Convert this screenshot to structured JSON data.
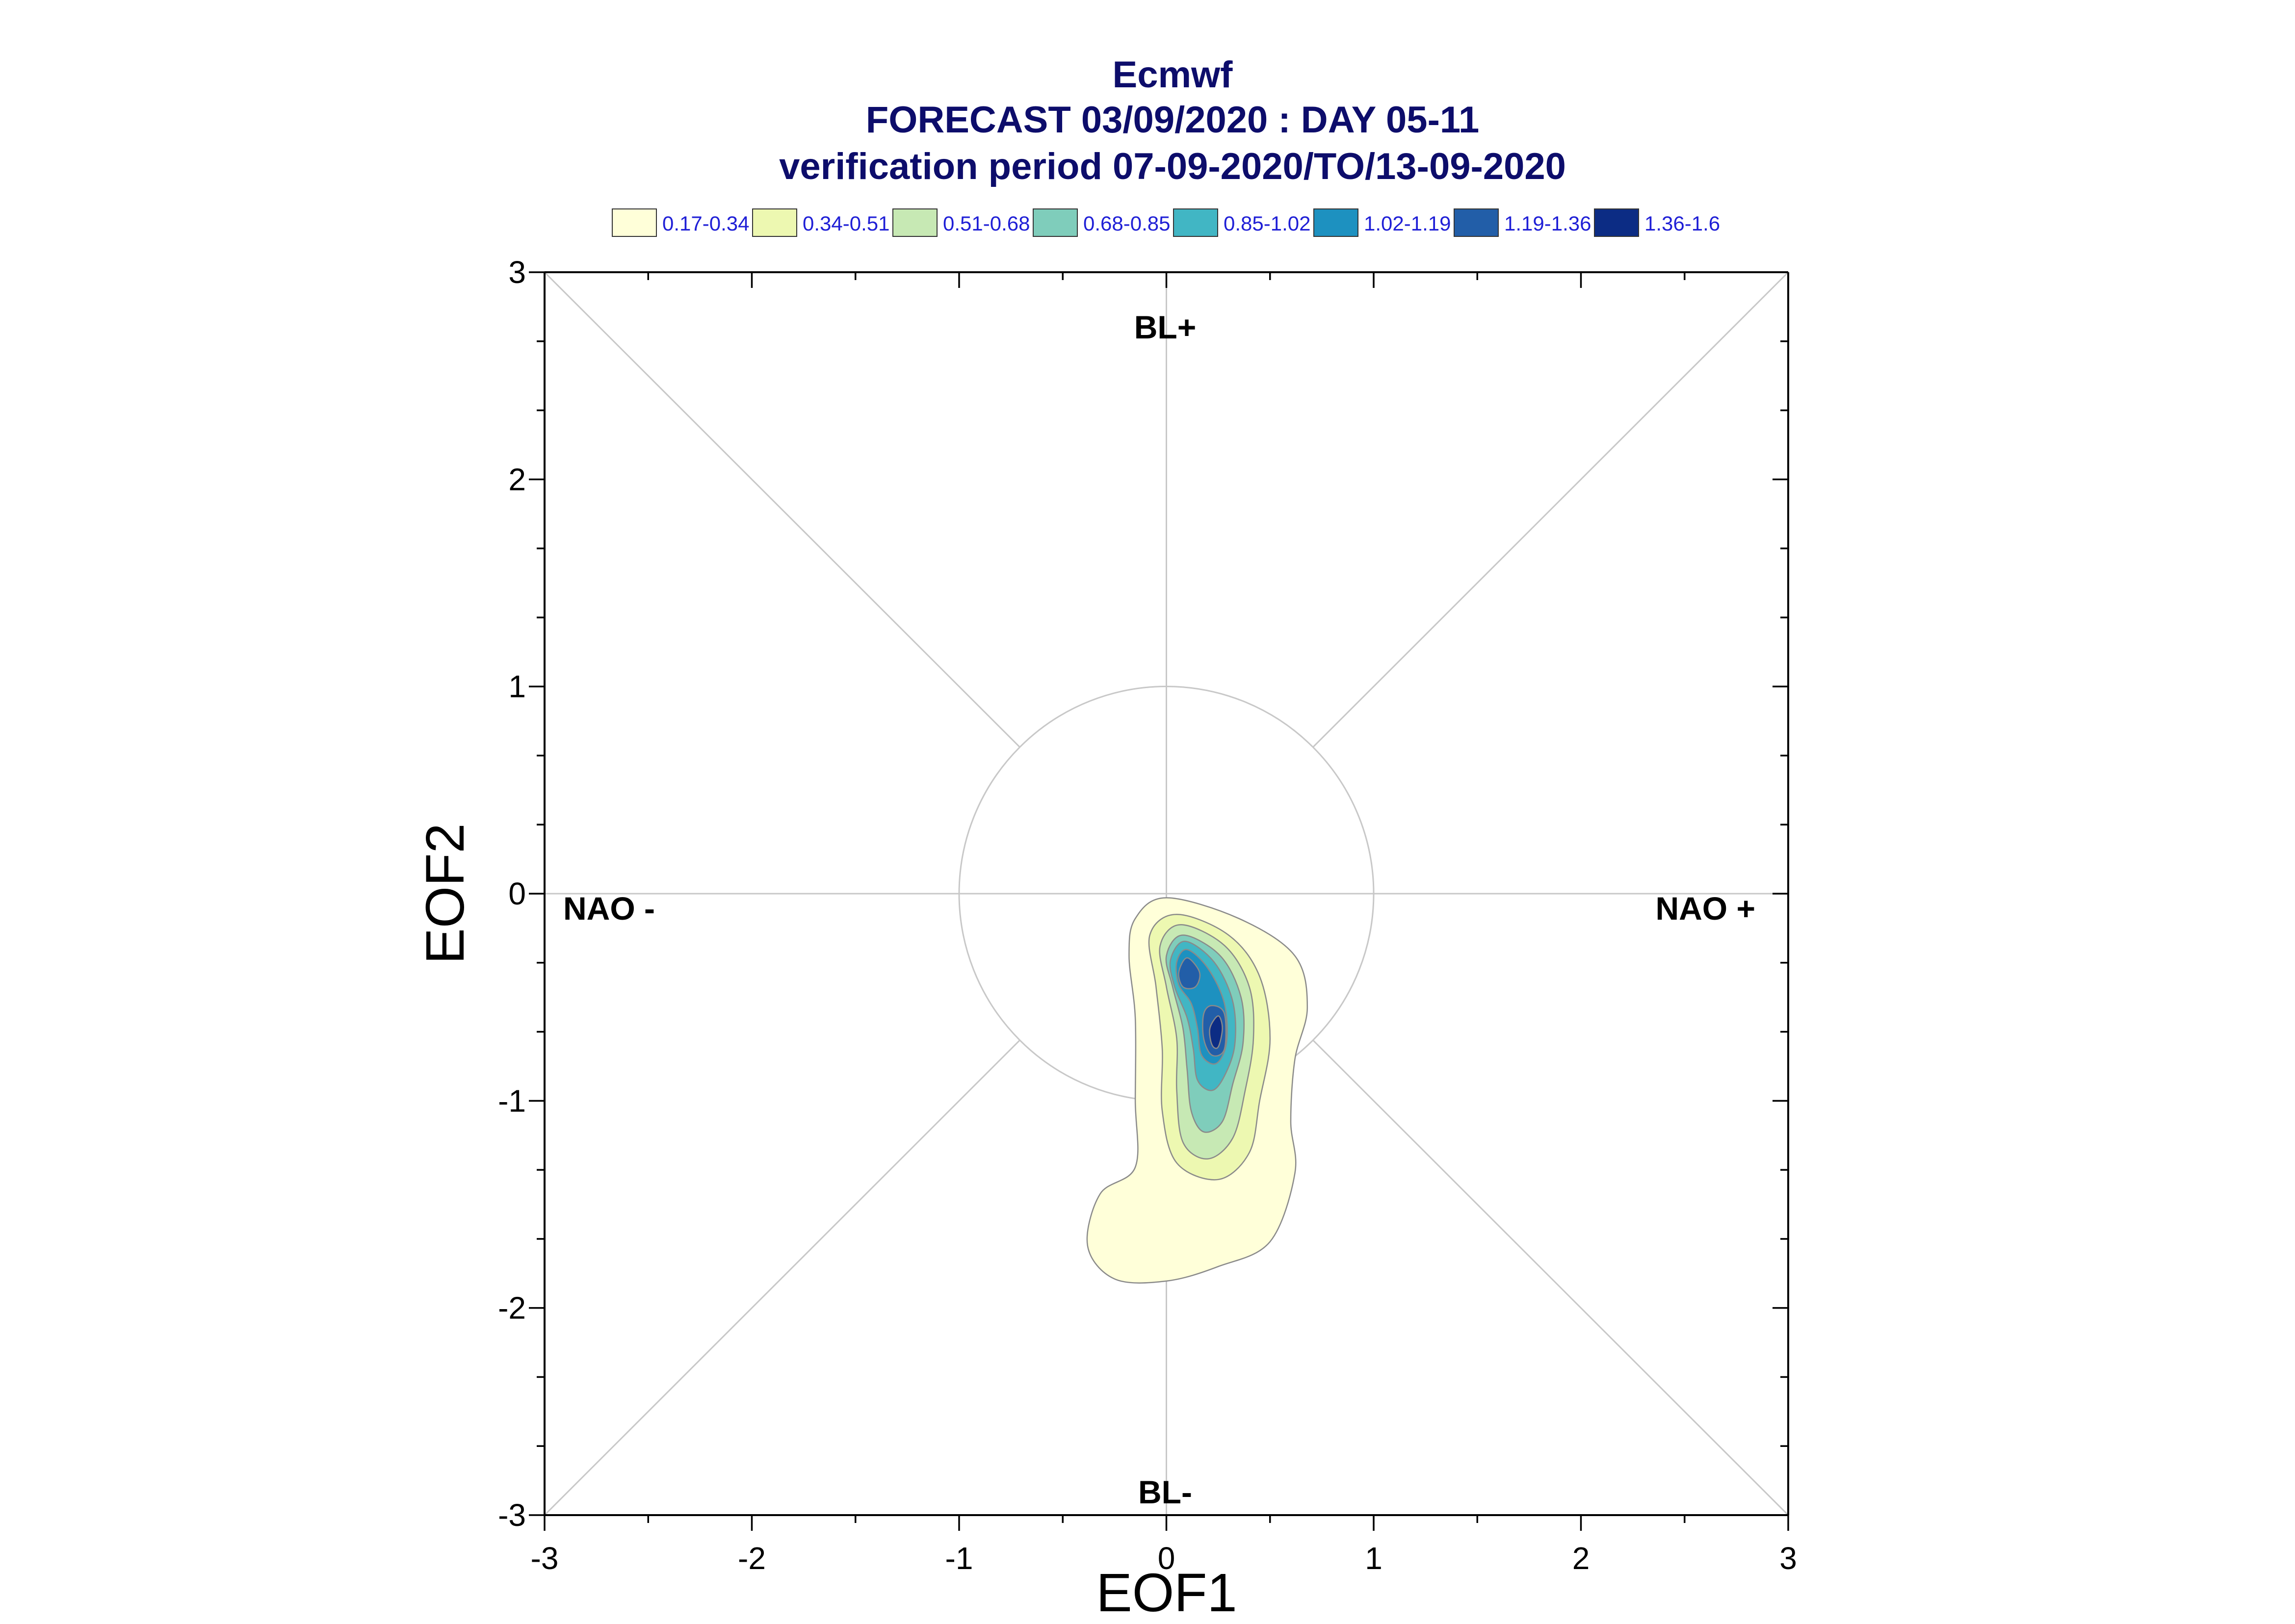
{
  "chart_data": {
    "type": "contour",
    "title": "Ecmwf",
    "subtitle": "FORECAST 03/09/2020 : DAY 05-11",
    "subtitle2": "verification period 07-09-2020/TO/13-09-2020",
    "xlabel": "EOF1",
    "ylabel": "EOF2",
    "xlim": [
      -3,
      3
    ],
    "ylim": [
      -3,
      3
    ],
    "xticks": [
      "-3",
      "-2",
      "-1",
      "0",
      "1",
      "2",
      "3"
    ],
    "yticks": [
      "3",
      "2",
      "1",
      "0",
      "-1",
      "-2",
      "-3"
    ],
    "legend": [
      {
        "label": "0.17-0.34",
        "color": "#ffffd9"
      },
      {
        "label": "0.34-0.51",
        "color": "#edf8b1"
      },
      {
        "label": "0.51-0.68",
        "color": "#c7e9b4"
      },
      {
        "label": "0.68-0.85",
        "color": "#7fcdbb"
      },
      {
        "label": "0.85-1.02",
        "color": "#41b6c4"
      },
      {
        "label": "1.02-1.19",
        "color": "#1d91c0"
      },
      {
        "label": "1.19-1.36",
        "color": "#225ea8"
      },
      {
        "label": "1.36-1.6",
        "color": "#0c2c84"
      }
    ],
    "regimes": {
      "top": "BL+",
      "bottom": "BL-",
      "left": "NAO -",
      "right": "NAO +"
    },
    "unit_circle_radius": 1,
    "density_levels": [
      {
        "level": 0,
        "points": [
          [
            0.0,
            -0.02
          ],
          [
            0.35,
            -0.12
          ],
          [
            0.62,
            -0.3
          ],
          [
            0.68,
            -0.55
          ],
          [
            0.62,
            -0.8
          ],
          [
            0.6,
            -1.1
          ],
          [
            0.62,
            -1.35
          ],
          [
            0.5,
            -1.68
          ],
          [
            0.25,
            -1.8
          ],
          [
            0.0,
            -1.87
          ],
          [
            -0.25,
            -1.86
          ],
          [
            -0.38,
            -1.7
          ],
          [
            -0.32,
            -1.45
          ],
          [
            -0.15,
            -1.32
          ],
          [
            -0.15,
            -1.0
          ],
          [
            -0.15,
            -0.6
          ],
          [
            -0.18,
            -0.3
          ],
          [
            -0.15,
            -0.12
          ]
        ]
      },
      {
        "level": 1,
        "points": [
          [
            0.05,
            -0.1
          ],
          [
            0.3,
            -0.2
          ],
          [
            0.45,
            -0.4
          ],
          [
            0.5,
            -0.7
          ],
          [
            0.45,
            -1.0
          ],
          [
            0.4,
            -1.25
          ],
          [
            0.25,
            -1.38
          ],
          [
            0.05,
            -1.3
          ],
          [
            -0.02,
            -1.05
          ],
          [
            -0.02,
            -0.75
          ],
          [
            -0.05,
            -0.45
          ],
          [
            -0.08,
            -0.2
          ]
        ]
      },
      {
        "level": 2,
        "points": [
          [
            0.07,
            -0.15
          ],
          [
            0.28,
            -0.25
          ],
          [
            0.4,
            -0.45
          ],
          [
            0.42,
            -0.7
          ],
          [
            0.38,
            -0.95
          ],
          [
            0.32,
            -1.18
          ],
          [
            0.2,
            -1.28
          ],
          [
            0.08,
            -1.2
          ],
          [
            0.05,
            -0.95
          ],
          [
            0.05,
            -0.7
          ],
          [
            0.0,
            -0.45
          ],
          [
            -0.03,
            -0.25
          ]
        ]
      },
      {
        "level": 3,
        "points": [
          [
            0.08,
            -0.2
          ],
          [
            0.26,
            -0.3
          ],
          [
            0.36,
            -0.5
          ],
          [
            0.37,
            -0.72
          ],
          [
            0.32,
            -0.92
          ],
          [
            0.27,
            -1.1
          ],
          [
            0.18,
            -1.15
          ],
          [
            0.12,
            -1.05
          ],
          [
            0.1,
            -0.85
          ],
          [
            0.08,
            -0.65
          ],
          [
            0.03,
            -0.45
          ],
          [
            0.0,
            -0.3
          ]
        ]
      },
      {
        "level": 4,
        "points": [
          [
            0.09,
            -0.23
          ],
          [
            0.23,
            -0.33
          ],
          [
            0.32,
            -0.52
          ],
          [
            0.33,
            -0.73
          ],
          [
            0.28,
            -0.88
          ],
          [
            0.22,
            -0.95
          ],
          [
            0.15,
            -0.9
          ],
          [
            0.13,
            -0.75
          ],
          [
            0.1,
            -0.6
          ],
          [
            0.04,
            -0.45
          ],
          [
            0.02,
            -0.32
          ]
        ]
      },
      {
        "level": 5,
        "points": [
          [
            0.1,
            -0.27
          ],
          [
            0.2,
            -0.36
          ],
          [
            0.28,
            -0.53
          ],
          [
            0.29,
            -0.72
          ],
          [
            0.24,
            -0.82
          ],
          [
            0.17,
            -0.78
          ],
          [
            0.15,
            -0.65
          ],
          [
            0.12,
            -0.53
          ],
          [
            0.06,
            -0.44
          ],
          [
            0.05,
            -0.33
          ]
        ]
      },
      {
        "level": 6,
        "points": [
          [
            0.1,
            -0.31
          ],
          [
            0.16,
            -0.38
          ],
          [
            0.14,
            -0.45
          ],
          [
            0.08,
            -0.45
          ],
          [
            0.06,
            -0.38
          ]
        ]
      },
      {
        "level": 6,
        "points": [
          [
            0.22,
            -0.54
          ],
          [
            0.28,
            -0.58
          ],
          [
            0.28,
            -0.75
          ],
          [
            0.22,
            -0.78
          ],
          [
            0.18,
            -0.7
          ],
          [
            0.18,
            -0.58
          ]
        ]
      },
      {
        "level": 7,
        "points": [
          [
            0.25,
            -0.59
          ],
          [
            0.27,
            -0.65
          ],
          [
            0.25,
            -0.74
          ],
          [
            0.22,
            -0.73
          ],
          [
            0.21,
            -0.65
          ]
        ]
      }
    ]
  }
}
